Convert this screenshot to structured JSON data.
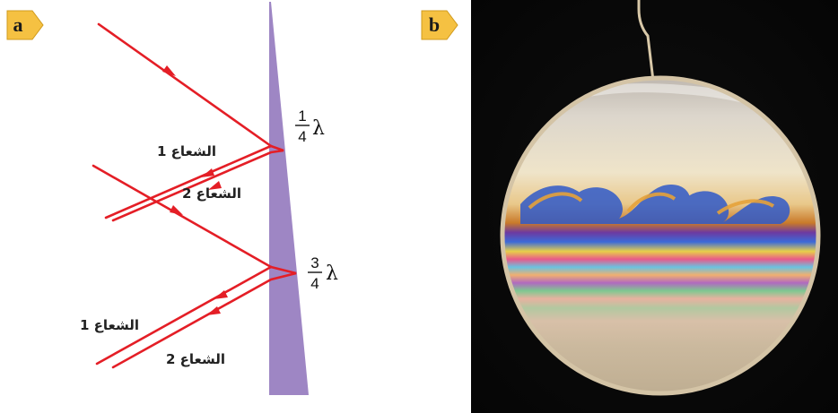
{
  "panels": [
    {
      "badge": "a"
    },
    {
      "badge": "b"
    }
  ],
  "diagram": {
    "film_color": "#9e86c4",
    "ray_color": "#e41e26",
    "thickness_top": {
      "num": "1",
      "den": "4",
      "symbol": "λ"
    },
    "thickness_bottom": {
      "num": "3",
      "den": "4",
      "symbol": "λ"
    },
    "ray_labels_top": [
      "الشعاع 1",
      "الشعاع 2"
    ],
    "ray_labels_bottom": [
      "الشعاع 1",
      "الشعاع 2"
    ]
  },
  "badge_color": "#f5c142"
}
